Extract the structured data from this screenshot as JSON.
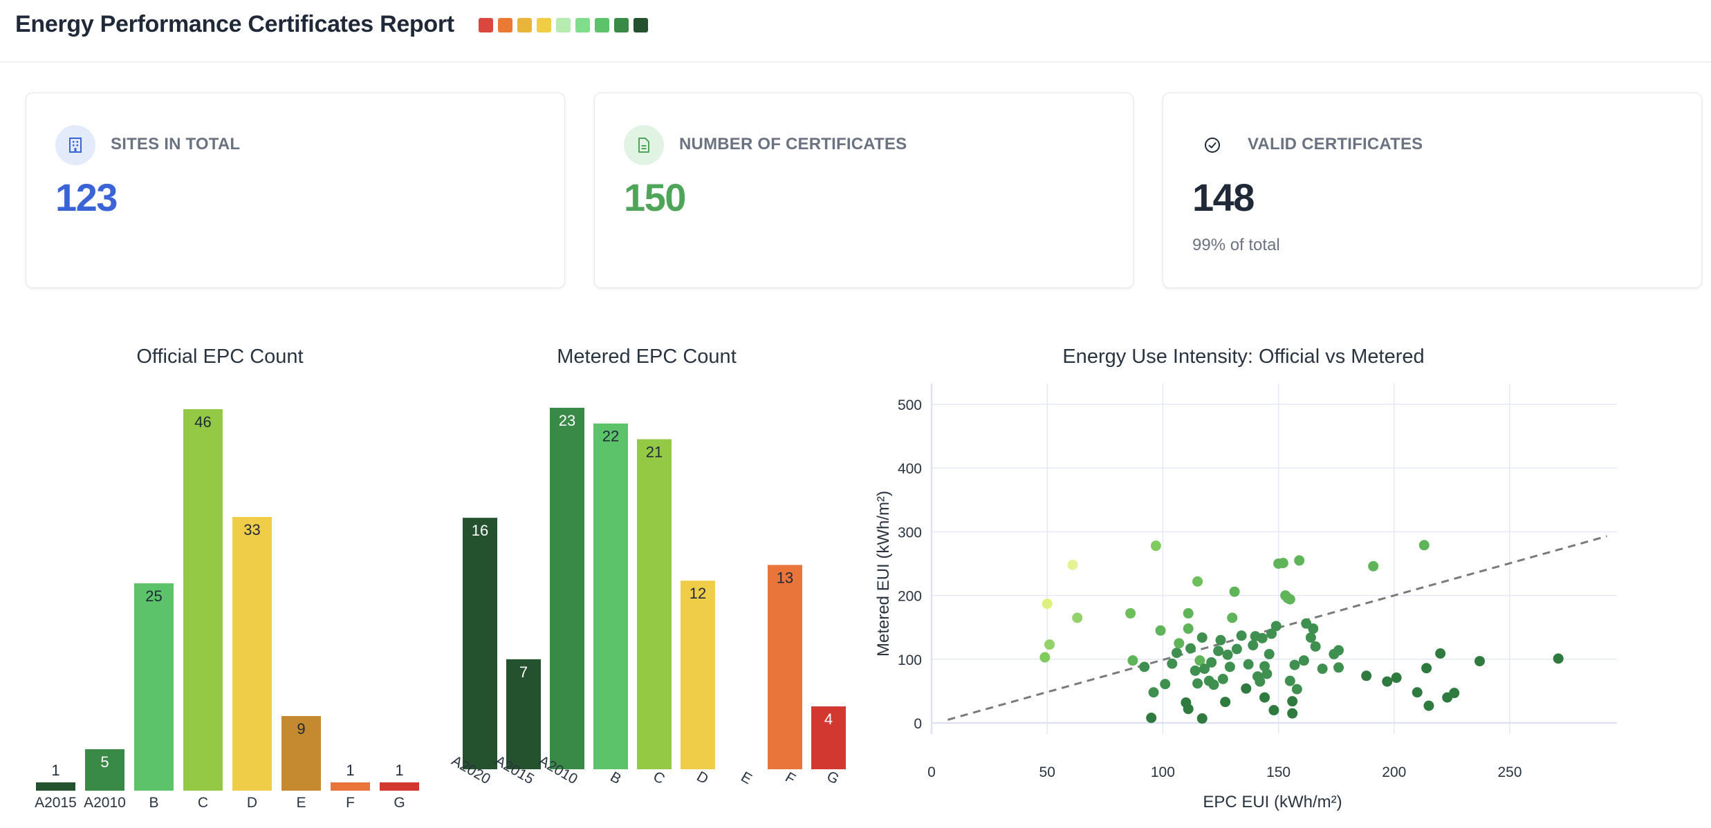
{
  "header": {
    "title": "Energy Performance Certificates Report",
    "swatches": [
      "#d9473f",
      "#ea7a33",
      "#e9b43a",
      "#f1cc45",
      "#b6ecb0",
      "#7fdd8c",
      "#5cc36b",
      "#3a8a47",
      "#24522f"
    ]
  },
  "cards": [
    {
      "label": "SITES IN TOTAL",
      "value": "123",
      "value_color": "#3b63d8",
      "icon": "building-icon",
      "icon_bg": "#e3ebfb",
      "icon_color": "#3b63d8"
    },
    {
      "label": "NUMBER OF CERTIFICATES",
      "value": "150",
      "value_color": "#4ea55a",
      "icon": "document-icon",
      "icon_bg": "#e1f4e4",
      "icon_color": "#4ea55a"
    },
    {
      "label": "VALID CERTIFICATES",
      "value": "148",
      "value_color": "#1f2937",
      "icon": "check-circle-icon",
      "icon_bg": "#ffffff",
      "icon_color": "#1f2937",
      "sub": "99% of total"
    }
  ],
  "chart_data": [
    {
      "type": "bar",
      "title": "Official EPC Count",
      "categories": [
        "A2015",
        "A2010",
        "B",
        "C",
        "D",
        "E",
        "F",
        "G"
      ],
      "values": [
        1,
        5,
        25,
        46,
        33,
        9,
        1,
        1
      ],
      "colors": [
        "#24522f",
        "#3a8a47",
        "#5cc36b",
        "#93c944",
        "#f0cd49",
        "#c58a2f",
        "#e9753a",
        "#d2382f"
      ],
      "label_colors": [
        "#1f2937",
        "#ffffff",
        "#1f2937",
        "#1f2937",
        "#1f2937",
        "#1f2937",
        "#1f2937",
        "#1f2937"
      ],
      "ylim": [
        0,
        46
      ],
      "rotate_ticks": false
    },
    {
      "type": "bar",
      "title": "Metered EPC Count",
      "categories": [
        "A2020",
        "A2015",
        "A2010",
        "B",
        "C",
        "D",
        "E",
        "F",
        "G"
      ],
      "values": [
        16,
        7,
        23,
        22,
        21,
        12,
        0,
        13,
        4
      ],
      "colors": [
        "#24522f",
        "#24522f",
        "#3a8a47",
        "#5cc36b",
        "#93c944",
        "#f0cd49",
        "#c58a2f",
        "#e9753a",
        "#d2382f"
      ],
      "label_colors": [
        "#ffffff",
        "#ffffff",
        "#ffffff",
        "#1f2937",
        "#1f2937",
        "#1f2937",
        "#1f2937",
        "#1f2937",
        "#ffffff"
      ],
      "ylim": [
        0,
        23
      ],
      "rotate_ticks": true
    },
    {
      "type": "scatter",
      "title": "Energy Use Intensity: Official vs Metered",
      "xlabel": "EPC EUI (kWh/m²)",
      "ylabel": "Metered EUI (kWh/m²)",
      "xlim": [
        0,
        297
      ],
      "ylim": [
        -15,
        520
      ],
      "xticks": [
        0,
        50,
        100,
        150,
        200,
        250
      ],
      "yticks": [
        0,
        100,
        200,
        300,
        400,
        500
      ],
      "reference_line": {
        "x": [
          7,
          292
        ],
        "y": [
          5,
          293
        ]
      },
      "grid": true,
      "points": [
        {
          "x": 49,
          "y": 103,
          "c": "#7fcb5e"
        },
        {
          "x": 51,
          "y": 123,
          "c": "#93d26a"
        },
        {
          "x": 50,
          "y": 187,
          "c": "#ddf07e"
        },
        {
          "x": 61,
          "y": 248,
          "c": "#e6f394"
        },
        {
          "x": 63,
          "y": 165,
          "c": "#93d26a"
        },
        {
          "x": 86,
          "y": 172,
          "c": "#6dbf5c"
        },
        {
          "x": 87,
          "y": 98,
          "c": "#5fb45a"
        },
        {
          "x": 92,
          "y": 88,
          "c": "#3f9050"
        },
        {
          "x": 95,
          "y": 8,
          "c": "#2f7a3f"
        },
        {
          "x": 96,
          "y": 48,
          "c": "#3f9050"
        },
        {
          "x": 97,
          "y": 278,
          "c": "#7fcb5e"
        },
        {
          "x": 99,
          "y": 145,
          "c": "#5fb45a"
        },
        {
          "x": 101,
          "y": 61,
          "c": "#3f9050"
        },
        {
          "x": 104,
          "y": 93,
          "c": "#3f9050"
        },
        {
          "x": 106,
          "y": 110,
          "c": "#3f9050"
        },
        {
          "x": 107,
          "y": 125,
          "c": "#5fb45a"
        },
        {
          "x": 110,
          "y": 32,
          "c": "#2f7a3f"
        },
        {
          "x": 111,
          "y": 22,
          "c": "#2f7a3f"
        },
        {
          "x": 111,
          "y": 148,
          "c": "#5fb45a"
        },
        {
          "x": 111,
          "y": 172,
          "c": "#5fb45a"
        },
        {
          "x": 112,
          "y": 117,
          "c": "#3f9050"
        },
        {
          "x": 114,
          "y": 82,
          "c": "#3f9050"
        },
        {
          "x": 115,
          "y": 222,
          "c": "#6dbf5c"
        },
        {
          "x": 115,
          "y": 62,
          "c": "#3f9050"
        },
        {
          "x": 116,
          "y": 98,
          "c": "#5fb45a"
        },
        {
          "x": 117,
          "y": 7,
          "c": "#2f7a3f"
        },
        {
          "x": 117,
          "y": 134,
          "c": "#3f9050"
        },
        {
          "x": 118,
          "y": 85,
          "c": "#3f9050"
        },
        {
          "x": 120,
          "y": 66,
          "c": "#3f9050"
        },
        {
          "x": 121,
          "y": 95,
          "c": "#3f9050"
        },
        {
          "x": 122,
          "y": 60,
          "c": "#3f9050"
        },
        {
          "x": 124,
          "y": 113,
          "c": "#3f9050"
        },
        {
          "x": 125,
          "y": 130,
          "c": "#3f9050"
        },
        {
          "x": 126,
          "y": 69,
          "c": "#3f9050"
        },
        {
          "x": 127,
          "y": 33,
          "c": "#2f7a3f"
        },
        {
          "x": 128,
          "y": 107,
          "c": "#3f9050"
        },
        {
          "x": 129,
          "y": 88,
          "c": "#3f9050"
        },
        {
          "x": 130,
          "y": 165,
          "c": "#5fb45a"
        },
        {
          "x": 131,
          "y": 206,
          "c": "#5fb45a"
        },
        {
          "x": 132,
          "y": 116,
          "c": "#3f9050"
        },
        {
          "x": 134,
          "y": 137,
          "c": "#3f9050"
        },
        {
          "x": 136,
          "y": 54,
          "c": "#2f7a3f"
        },
        {
          "x": 137,
          "y": 92,
          "c": "#3f9050"
        },
        {
          "x": 139,
          "y": 122,
          "c": "#3f9050"
        },
        {
          "x": 140,
          "y": 136,
          "c": "#3f9050"
        },
        {
          "x": 141,
          "y": 73,
          "c": "#3f9050"
        },
        {
          "x": 142,
          "y": 65,
          "c": "#3f9050"
        },
        {
          "x": 143,
          "y": 133,
          "c": "#3f9050"
        },
        {
          "x": 144,
          "y": 89,
          "c": "#3f9050"
        },
        {
          "x": 144,
          "y": 40,
          "c": "#2f7a3f"
        },
        {
          "x": 145,
          "y": 77,
          "c": "#3f9050"
        },
        {
          "x": 146,
          "y": 108,
          "c": "#3f9050"
        },
        {
          "x": 147,
          "y": 140,
          "c": "#3f9050"
        },
        {
          "x": 148,
          "y": 20,
          "c": "#2f7a3f"
        },
        {
          "x": 149,
          "y": 152,
          "c": "#3f9050"
        },
        {
          "x": 150,
          "y": 250,
          "c": "#5fb45a"
        },
        {
          "x": 152,
          "y": 251,
          "c": "#5fb45a"
        },
        {
          "x": 153,
          "y": 200,
          "c": "#5fb45a"
        },
        {
          "x": 154,
          "y": 196,
          "c": "#5fb45a"
        },
        {
          "x": 155,
          "y": 66,
          "c": "#3f9050"
        },
        {
          "x": 155,
          "y": 194,
          "c": "#5fb45a"
        },
        {
          "x": 156,
          "y": 34,
          "c": "#2f7a3f"
        },
        {
          "x": 156,
          "y": 15,
          "c": "#2f7a3f"
        },
        {
          "x": 157,
          "y": 91,
          "c": "#3f9050"
        },
        {
          "x": 158,
          "y": 53,
          "c": "#3f9050"
        },
        {
          "x": 159,
          "y": 255,
          "c": "#5fb45a"
        },
        {
          "x": 161,
          "y": 98,
          "c": "#3f9050"
        },
        {
          "x": 162,
          "y": 156,
          "c": "#3f9050"
        },
        {
          "x": 164,
          "y": 134,
          "c": "#3f9050"
        },
        {
          "x": 165,
          "y": 148,
          "c": "#3f9050"
        },
        {
          "x": 166,
          "y": 120,
          "c": "#3f9050"
        },
        {
          "x": 169,
          "y": 85,
          "c": "#3f9050"
        },
        {
          "x": 174,
          "y": 108,
          "c": "#3f9050"
        },
        {
          "x": 176,
          "y": 114,
          "c": "#3f9050"
        },
        {
          "x": 176,
          "y": 87,
          "c": "#3f9050"
        },
        {
          "x": 188,
          "y": 74,
          "c": "#2f7a3f"
        },
        {
          "x": 191,
          "y": 246,
          "c": "#5fb45a"
        },
        {
          "x": 197,
          "y": 65,
          "c": "#2f7a3f"
        },
        {
          "x": 201,
          "y": 71,
          "c": "#2f7a3f"
        },
        {
          "x": 210,
          "y": 48,
          "c": "#2f7a3f"
        },
        {
          "x": 213,
          "y": 279,
          "c": "#5fb45a"
        },
        {
          "x": 214,
          "y": 86,
          "c": "#2f7a3f"
        },
        {
          "x": 215,
          "y": 27,
          "c": "#2f7a3f"
        },
        {
          "x": 220,
          "y": 109,
          "c": "#2f7a3f"
        },
        {
          "x": 223,
          "y": 40,
          "c": "#2f7a3f"
        },
        {
          "x": 226,
          "y": 47,
          "c": "#2f7a3f"
        },
        {
          "x": 237,
          "y": 97,
          "c": "#2f7a3f"
        },
        {
          "x": 271,
          "y": 101,
          "c": "#2f7a3f"
        }
      ]
    }
  ]
}
